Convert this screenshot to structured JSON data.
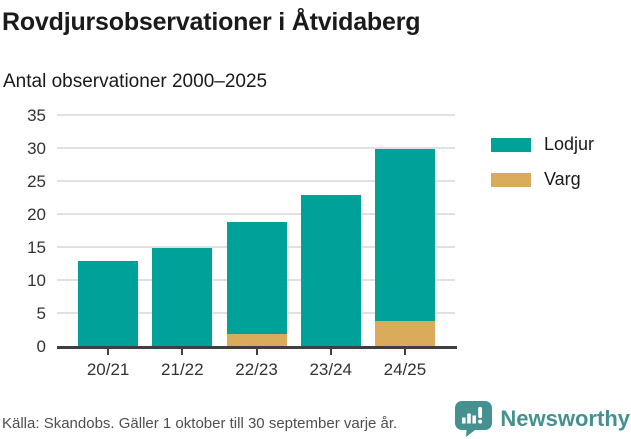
{
  "header": {
    "title": "Rovdjursobservationer i Åtvidaberg",
    "subtitle": "Antal observationer 2000–2025"
  },
  "chart_data": {
    "type": "bar",
    "stacked": true,
    "title": "Rovdjursobservationer i Åtvidaberg",
    "subtitle": "Antal observationer 2000–2025",
    "categories": [
      "20/21",
      "21/22",
      "22/23",
      "23/24",
      "24/25"
    ],
    "series": [
      {
        "name": "Lodjur",
        "color": "#00a199",
        "values": [
          13,
          15,
          17,
          23,
          26
        ]
      },
      {
        "name": "Varg",
        "color": "#d9ab5a",
        "values": [
          0,
          0,
          2,
          0,
          4
        ]
      }
    ],
    "totals": [
      13,
      15,
      19,
      23,
      30
    ],
    "xlabel": "",
    "ylabel": "",
    "ylim": [
      0,
      35
    ],
    "yticks": [
      0,
      5,
      10,
      15,
      20,
      25,
      30,
      35
    ],
    "grid": true,
    "legend_position": "right"
  },
  "footer": {
    "source": "Källa: Skandobs. Gäller 1 oktober till 30 september varje år.",
    "brand": "Newsworthy"
  },
  "colors": {
    "lodjur": "#00a199",
    "varg": "#d9ab5a",
    "brand_teal": "#459190",
    "axis": "#3f3f3f",
    "grid": "#e1e1e1",
    "title_text": "#1a1a1a",
    "muted_text": "#4f4f4f"
  }
}
